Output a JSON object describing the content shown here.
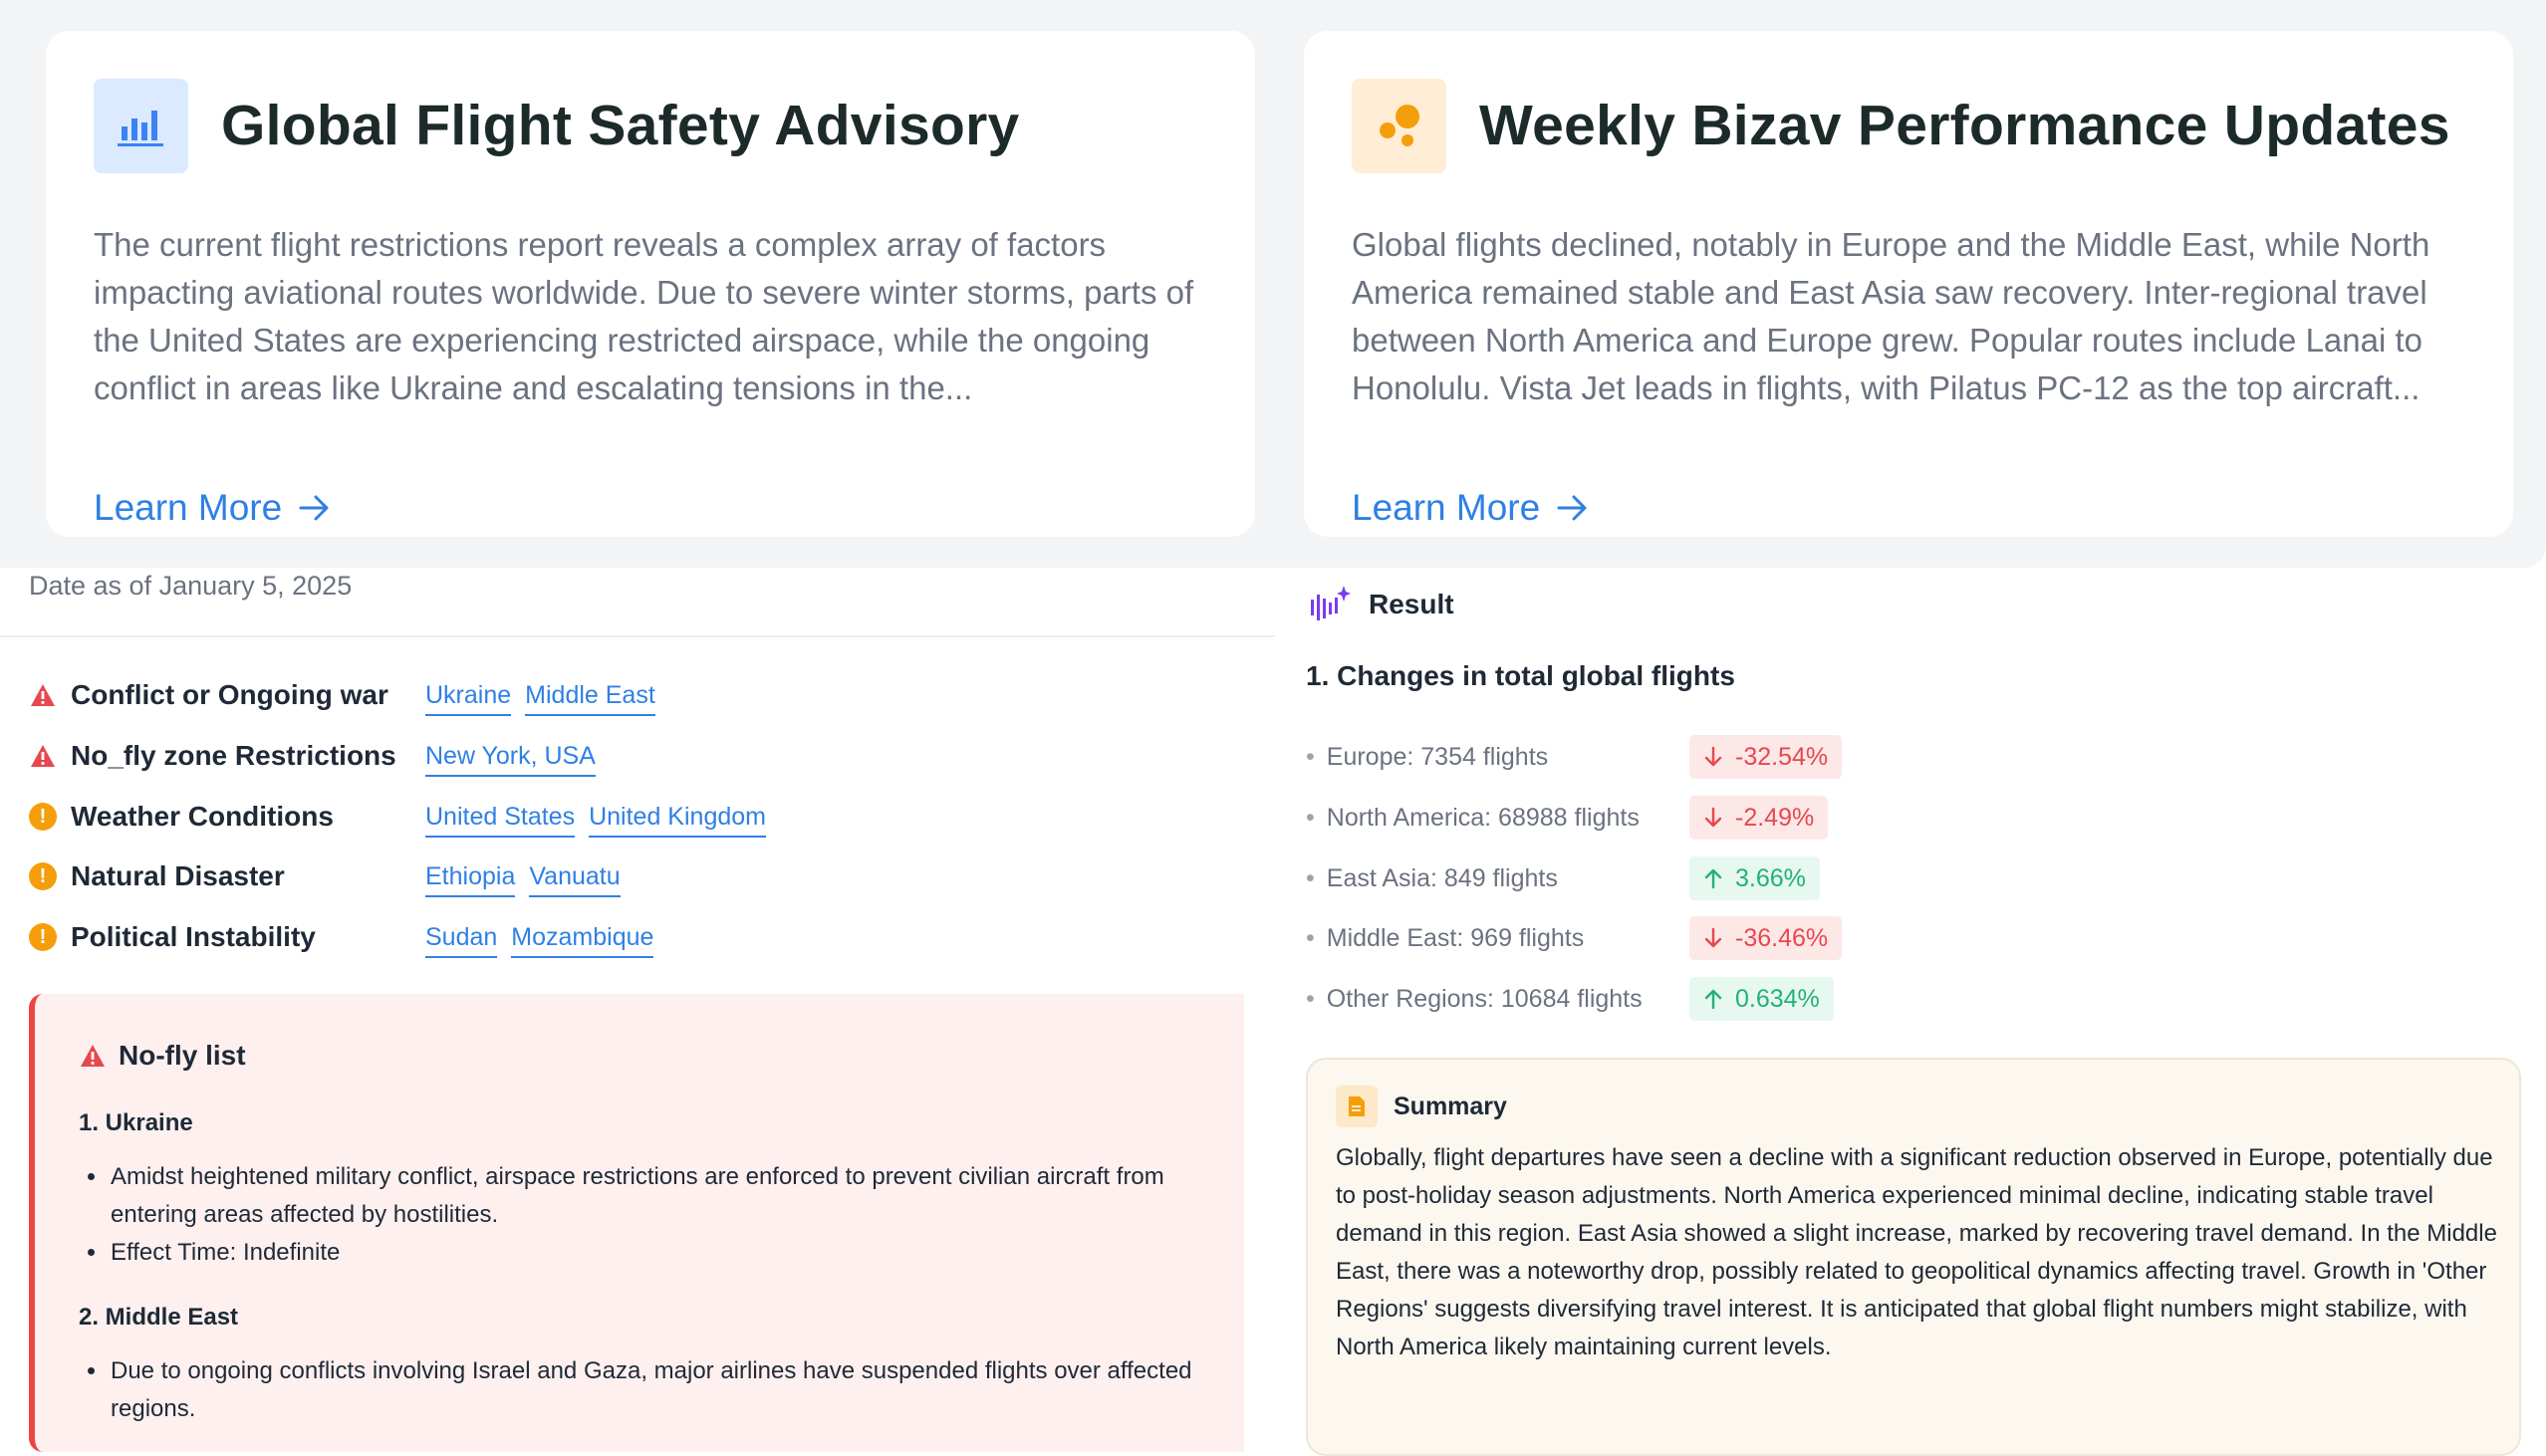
{
  "cards": [
    {
      "title": "Global Flight Safety Advisory",
      "icon": "bar-chart-icon",
      "body": "The current flight restrictions report reveals a complex array of factors impacting aviational routes worldwide. Due to severe winter storms, parts of the United States are experiencing restricted airspace, while the ongoing conflict in areas like Ukraine and escalating tensions in the...",
      "link": "Learn More"
    },
    {
      "title": "Weekly Bizav Performance Updates",
      "icon": "bubbles-icon",
      "body": "Global flights declined, notably in Europe and the Middle East, while North America remained stable and East Asia saw recovery. Inter-regional travel between North America and Europe grew. Popular routes include Lanai to Honolulu. Vista Jet leads in flights, with Pilatus PC-12 as the top aircraft...",
      "link": "Learn More"
    }
  ],
  "advisory": {
    "date": "Date as of January 5, 2025",
    "restrictions": [
      {
        "label": "Conflict or Ongoing war",
        "severity": "danger",
        "tags": [
          "Ukraine",
          "Middle East"
        ]
      },
      {
        "label": "No_fly zone Restrictions",
        "severity": "danger",
        "tags": [
          "New York, USA"
        ]
      },
      {
        "label": "Weather Conditions",
        "severity": "warning",
        "tags": [
          "United States",
          "United Kingdom"
        ]
      },
      {
        "label": "Natural Disaster",
        "severity": "warning",
        "tags": [
          "Ethiopia",
          "Vanuatu"
        ]
      },
      {
        "label": "Political Instability",
        "severity": "warning",
        "tags": [
          "Sudan",
          "Mozambique"
        ]
      }
    ],
    "nofly": {
      "title": "No-fly list",
      "sections": [
        {
          "heading": "1. Ukraine",
          "bullets": [
            "Amidst heightened military conflict, airspace restrictions are enforced to prevent civilian aircraft from entering areas affected by hostilities.",
            "Effect Time: Indefinite"
          ]
        },
        {
          "heading": "2. Middle East",
          "bullets": [
            "Due to ongoing conflicts involving Israel and Gaza, major airlines have suspended flights over affected regions."
          ]
        }
      ]
    }
  },
  "result": {
    "title": "Result",
    "changes_title": "1. Changes in total global flights",
    "stats": [
      {
        "label": "Europe: 7354 flights",
        "change": "-32.54%",
        "direction": "down"
      },
      {
        "label": "North America: 68988 flights",
        "change": "-2.49%",
        "direction": "down"
      },
      {
        "label": "East Asia: 849 flights",
        "change": "3.66%",
        "direction": "up"
      },
      {
        "label": "Middle East: 969 flights",
        "change": "-36.46%",
        "direction": "down"
      },
      {
        "label": "Other Regions: 10684 flights",
        "change": "0.634%",
        "direction": "up"
      }
    ],
    "summary": {
      "title": "Summary",
      "body": "Globally, flight departures have seen a decline with a significant reduction observed in Europe, potentially due to post-holiday season adjustments. North America experienced minimal decline, indicating stable travel demand in this region. East Asia showed a slight increase, marked by recovering travel demand. In the Middle East, there was a noteworthy drop, possibly related to geopolitical dynamics affecting travel. Growth in 'Other Regions' suggests diversifying travel interest. It is anticipated that global flight numbers might stabilize, with North America likely maintaining current levels."
    }
  },
  "colors": {
    "accent": "#2f80e4",
    "danger": "#e5484d",
    "warning": "#f59e0b",
    "success": "#22b07d"
  }
}
